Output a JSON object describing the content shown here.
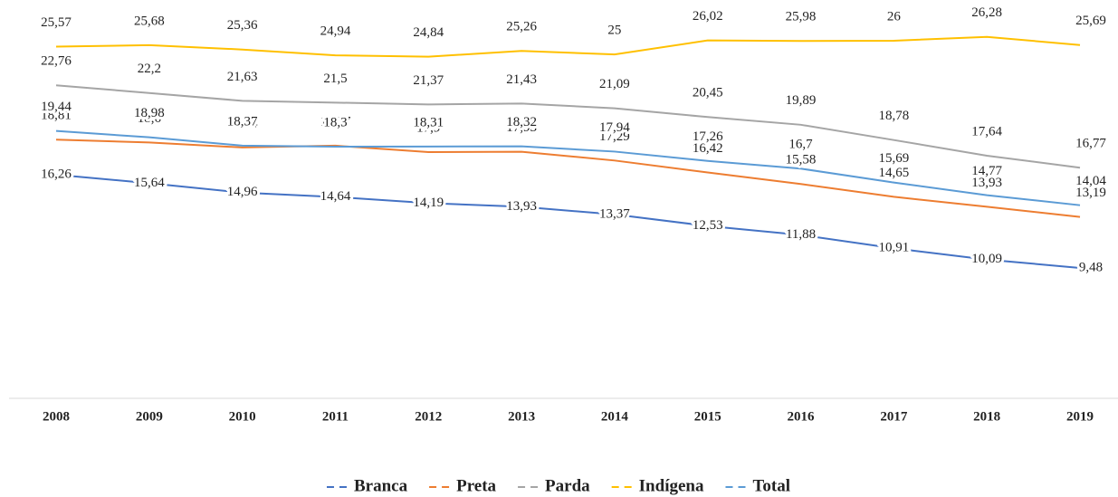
{
  "chart_data": {
    "type": "line",
    "categories": [
      "2008",
      "2009",
      "2010",
      "2011",
      "2012",
      "2013",
      "2014",
      "2015",
      "2016",
      "2017",
      "2018",
      "2019"
    ],
    "ylim": [
      0,
      28.5
    ],
    "series": [
      {
        "name": "Branca",
        "color": "#4472c4",
        "values": [
          16.26,
          15.64,
          14.96,
          14.64,
          14.19,
          13.93,
          13.37,
          12.53,
          11.88,
          10.91,
          10.09,
          9.48
        ],
        "value_labels": [
          "16,26",
          "15,64",
          "14,96",
          "14,64",
          "14,19",
          "13,93",
          "13,37",
          "12,53",
          "11,88",
          "10,91",
          "10,09",
          "9,48"
        ]
      },
      {
        "name": "Preta",
        "color": "#ed7d31",
        "values": [
          18.81,
          18.6,
          18.24,
          18.37,
          17.9,
          17.93,
          17.29,
          16.42,
          15.58,
          14.65,
          13.93,
          13.19
        ],
        "value_labels": [
          "18,81",
          "18,6",
          "18,24",
          "18,37",
          "17,9",
          "17,93",
          "17,29",
          "16,42",
          "15,58",
          "14,65",
          "13,93",
          "13,19"
        ]
      },
      {
        "name": "Parda",
        "color": "#a5a5a5",
        "values": [
          22.76,
          22.2,
          21.63,
          21.5,
          21.37,
          21.43,
          21.09,
          20.45,
          19.89,
          18.78,
          17.64,
          16.77
        ],
        "value_labels": [
          "22,76",
          "22,2",
          "21,63",
          "21,5",
          "21,37",
          "21,43",
          "21,09",
          "20,45",
          "19,89",
          "18,78",
          "17,64",
          "16,77"
        ]
      },
      {
        "name": "Indígena",
        "color": "#ffc000",
        "values": [
          25.57,
          25.68,
          25.36,
          24.94,
          24.84,
          25.26,
          25,
          26.02,
          25.98,
          26,
          26.28,
          25.69
        ],
        "value_labels": [
          "25,57",
          "25,68",
          "25,36",
          "24,94",
          "24,84",
          "25,26",
          "25",
          "26,02",
          "25,98",
          "26",
          "26,28",
          "25,69"
        ]
      },
      {
        "name": "Total",
        "color": "#5b9bd5",
        "values": [
          19.44,
          18.98,
          18.37,
          18.3,
          18.31,
          18.32,
          17.94,
          17.26,
          16.7,
          15.69,
          14.77,
          14.04
        ],
        "value_labels": [
          "19,44",
          "18,98",
          "18,37",
          "18,3",
          "18,31",
          "18,32",
          "17,94",
          "17,26",
          "16,7",
          "15,69",
          "14,77",
          "14,04"
        ]
      }
    ],
    "legend": "bottom"
  }
}
